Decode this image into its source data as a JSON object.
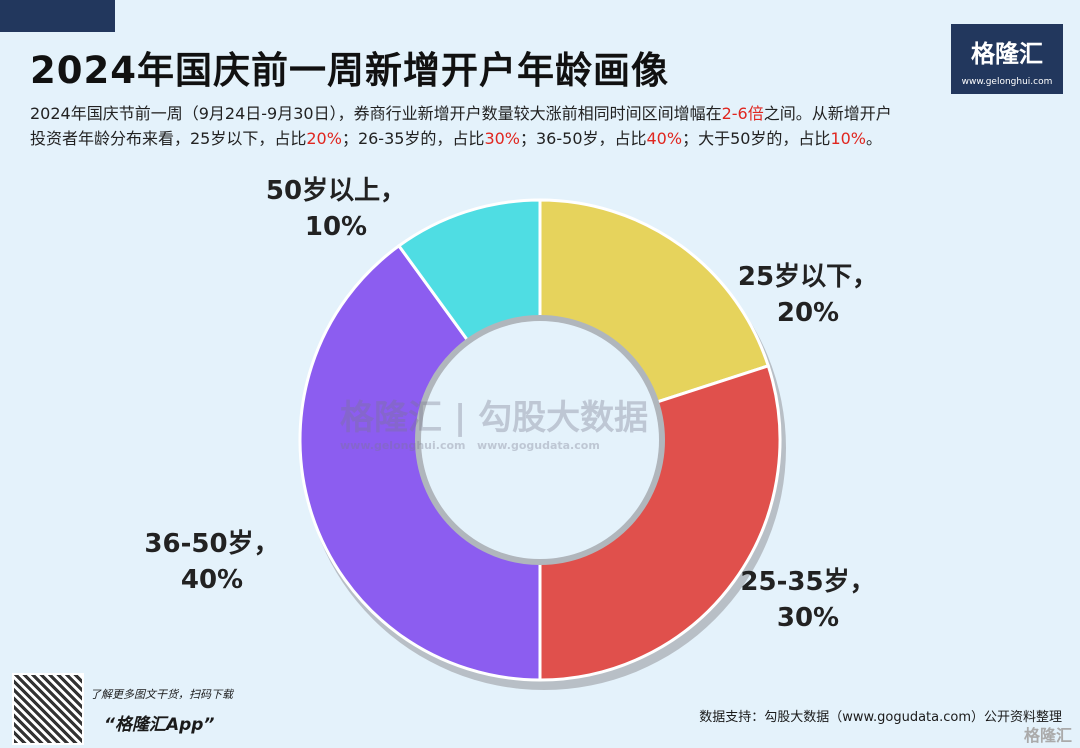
{
  "header": {
    "title": "2024年国庆前一周新增开户年龄画像",
    "desc_line1_a": "2024年国庆节前一周（9月24日-9月30日），券商行业新增开户数量较大涨前相同时间区间增幅在",
    "desc_line1_red": "2-6倍",
    "desc_line1_b": "之间。从新增开户",
    "desc_line2": [
      {
        "t": "投资者年龄分布来看，25岁以下，占比"
      },
      {
        "t": "20%",
        "red": true
      },
      {
        "t": "；26-35岁的，占比"
      },
      {
        "t": "30%",
        "red": true
      },
      {
        "t": "；36-50岁，占比"
      },
      {
        "t": "40%",
        "red": true
      },
      {
        "t": "；大于50岁的，占比"
      },
      {
        "t": "10%",
        "red": true
      },
      {
        "t": "。"
      }
    ]
  },
  "logo": {
    "brand": "格隆汇",
    "url": "www.gelonghui.com"
  },
  "watermark": {
    "left": "格隆汇",
    "left_url": "www.gelonghui.com",
    "right": "勾股大数据",
    "right_url": "www.gogudata.com"
  },
  "chart_data": {
    "type": "pie",
    "donut": true,
    "categories": [
      "25岁以下",
      "25-35岁",
      "36-50岁",
      "50岁以上"
    ],
    "values": [
      20,
      30,
      40,
      10
    ],
    "labels": [
      "20%",
      "30%",
      "40%",
      "10%"
    ],
    "colors": [
      "#e6d35c",
      "#e0504c",
      "#8c5df0",
      "#4fdde3"
    ]
  },
  "footer": {
    "qr_text": "了解更多图文干货，扫码下载",
    "app": "“格隆汇App”",
    "source": "数据支持：勾股大数据（www.gogudata.com）公开资料整理",
    "corner": "格隆汇"
  }
}
